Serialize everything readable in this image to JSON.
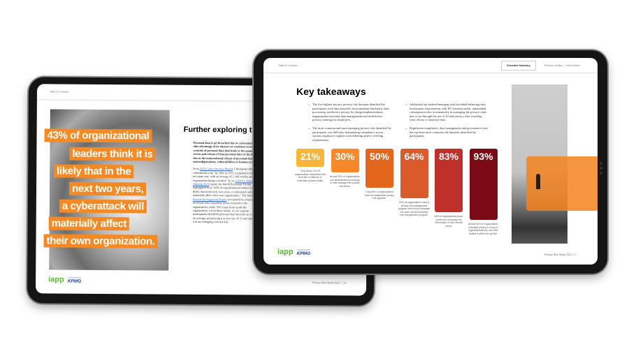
{
  "back_page": {
    "header_toc": "Table of Contents",
    "quote_lines": [
      "43% of organizational",
      "leaders think it is",
      "likely that in the",
      "next two years,",
      "a cyberattack will",
      "materially affect",
      "their own organization."
    ],
    "heading": "Further exploring the",
    "para1": "Personal data is (a) breached due to cyberattacks that take advantage of an absence or weakness in security controls of personal data that leads to the unauthorized access and release of that personal data or (b) leaked due to the unintentional release of personal data due to misconfigurations, vulnerabilities or human errors.",
    "para2_a": "In its ",
    "para2_link1": "2023 Cyber Security Report",
    "para2_b": ", Checkpoint identified cyberattacks rose \"by 38% in 2022 compared to the previous year, with an average of 1,168 weekly attacks per organization being recorded.\" In its ",
    "para2_link2": "Global Cybersecurity Outlook 2023",
    "para2_c": " report, the World Economic Forum highlighted how \"43% of organizational leaders think it is likely that in the next two years, a cyberattack will materially affect their own organization.\" The Verizon ",
    "para2_link3": "Data Breach Investigations Report",
    "para2_d": " revealed 83% of breaches reviewed were caused by threat external to the organization, while 19% came from inside the organization. Given these trends, it's no surprise participants identified personal data breaches as a top risk on average, prioritizing it as two out of 15 and categorized it as an emerging external risk.",
    "footer_logo_iapp": "iapp",
    "footer_logo_kpmg": "KPMG",
    "footer_text": "Privacy Risk Study 2023  |  14"
  },
  "front_page": {
    "header_toc": "Table of Contents",
    "header_active": "Executive Summary",
    "header_nav": "Previous Section  |  Next Section",
    "title": "Key takeaways",
    "bullets_left": [
      "The five highest priority privacy risk domains identified by participants were data breaches, noncompliant third-party data processing, ineffective privacy by design implementation, inappropriate personal data management and insufficient privacy training for employees.",
      "The most common and most emerging privacy risk identified by participants was difficulty maintaining compliance across various regulatory regimes with differing and/or evolving requirements."
    ],
    "bullets_right": [
      "Additional top-ranked emerging risks included balancing data localization requirements with EU business needs, unintended consequences due to immaturity in managing the privacy risks that occur through the use of AI and privacy risks resulting from efforts to monetize data.",
      "Regulation/compliance, data management and governance were the top three most common risk domains identified by participants."
    ],
    "stats": [
      {
        "value": "21%",
        "percent": 21,
        "color": "#f7b53a",
        "caption": "Only about 21% of organizations empowered the third line of defense to undertake privacy audits."
      },
      {
        "value": "30%",
        "percent": 30,
        "color": "#f7892a",
        "caption": "Almost 30% of organizations use spreadsheet technology to help manage their privacy risk efforts."
      },
      {
        "value": "50%",
        "percent": 50,
        "color": "#e2661b",
        "caption": "Only 50% of organizations have an established privacy risk appetite."
      },
      {
        "value": "64%",
        "percent": 64,
        "color": "#d95a2b",
        "caption": "64% of organizations have a privacy risk management program that is fully integrated into their overall enterprise risk management program."
      },
      {
        "value": "83%",
        "percent": 83,
        "color": "#c0302a",
        "caption": "83% of organizations place some kind of privacy risk information in their annual report."
      },
      {
        "value": "93%",
        "percent": 93,
        "color": "#7a0a16",
        "caption": "Almost 93% of organizations indicated privacy is a top-10 organizational risk, and 38% ranked it within the top five."
      }
    ],
    "footer_logo_iapp": "iapp",
    "footer_logo_kpmg": "KPMG",
    "footer_text": "Privacy Risk Study 2023  |  7"
  }
}
